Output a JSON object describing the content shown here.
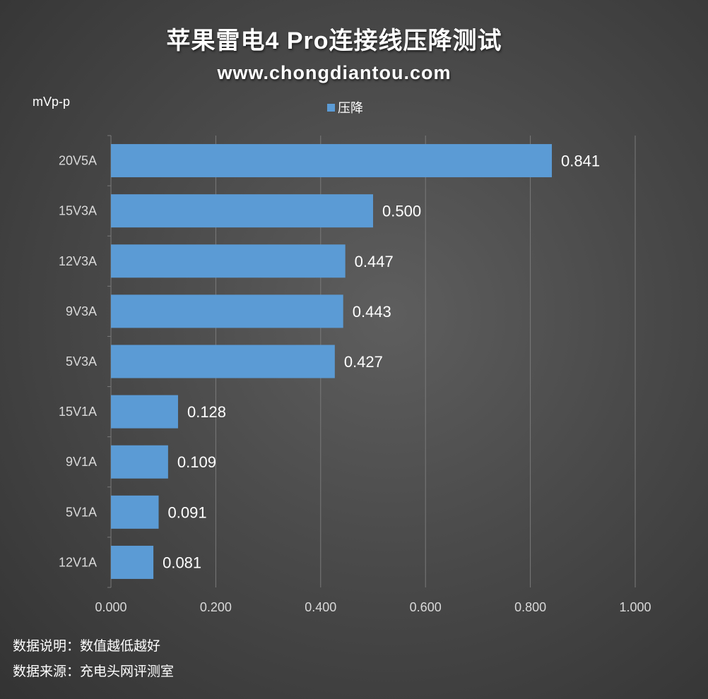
{
  "header": {
    "title": "苹果雷电4 Pro连接线压降测试",
    "subtitle": "www.chongdiantou.com"
  },
  "footer": {
    "note1": "数据说明：数值越低越好",
    "note2": "数据来源：充电头网评测室"
  },
  "colors": {
    "bar": "#5b9bd5",
    "grid": "#7a7a7a",
    "text": "#ffffff",
    "tick": "#d9d9d9"
  },
  "chart_data": {
    "type": "bar",
    "orientation": "horizontal",
    "ylabel": "mVp-p",
    "categories": [
      "20V5A",
      "15V3A",
      "12V3A",
      "9V3A",
      "5V3A",
      "15V1A",
      "9V1A",
      "5V1A",
      "12V1A"
    ],
    "series": [
      {
        "name": "压降",
        "values": [
          0.841,
          0.5,
          0.447,
          0.443,
          0.427,
          0.128,
          0.109,
          0.091,
          0.081
        ],
        "labels": [
          "0.841",
          "0.500",
          "0.447",
          "0.443",
          "0.427",
          "0.128",
          "0.109",
          "0.091",
          "0.081"
        ]
      }
    ],
    "xlim": [
      0,
      1.0
    ],
    "xticks": [
      0,
      0.2,
      0.4,
      0.6,
      0.8,
      1.0
    ],
    "xtick_labels": [
      "0.000",
      "0.200",
      "0.400",
      "0.600",
      "0.800",
      "1.000"
    ],
    "grid": true,
    "legend_position": "top-center"
  }
}
